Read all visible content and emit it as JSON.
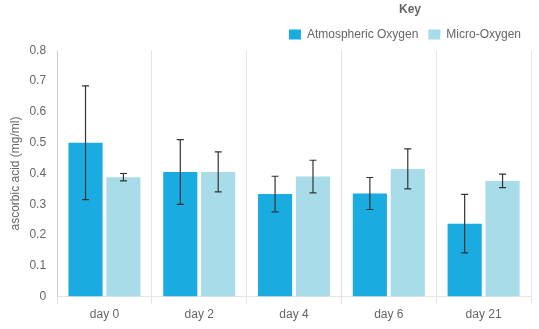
{
  "chart_data": {
    "type": "bar",
    "categories": [
      "day 0",
      "day 2",
      "day 4",
      "day 6",
      "day 21"
    ],
    "series": [
      {
        "name": "Atmospheric Oxygen",
        "color": "#1aace0",
        "values": [
          0.5,
          0.405,
          0.333,
          0.335,
          0.237
        ],
        "errors": [
          0.185,
          0.105,
          0.058,
          0.052,
          0.095
        ]
      },
      {
        "name": "Micro-Oxygen",
        "color": "#a8dce8",
        "values": [
          0.388,
          0.405,
          0.39,
          0.415,
          0.376
        ],
        "errors": [
          0.012,
          0.065,
          0.053,
          0.065,
          0.022
        ]
      }
    ],
    "ylabel": "ascorbic acid (mg/ml)",
    "ylim": [
      0,
      0.8
    ],
    "yticks": [
      0,
      0.1,
      0.2,
      0.3,
      0.4,
      0.5,
      0.6,
      0.7,
      0.8
    ],
    "grid": "x",
    "legend": "upper right",
    "legend_title": "Key"
  }
}
